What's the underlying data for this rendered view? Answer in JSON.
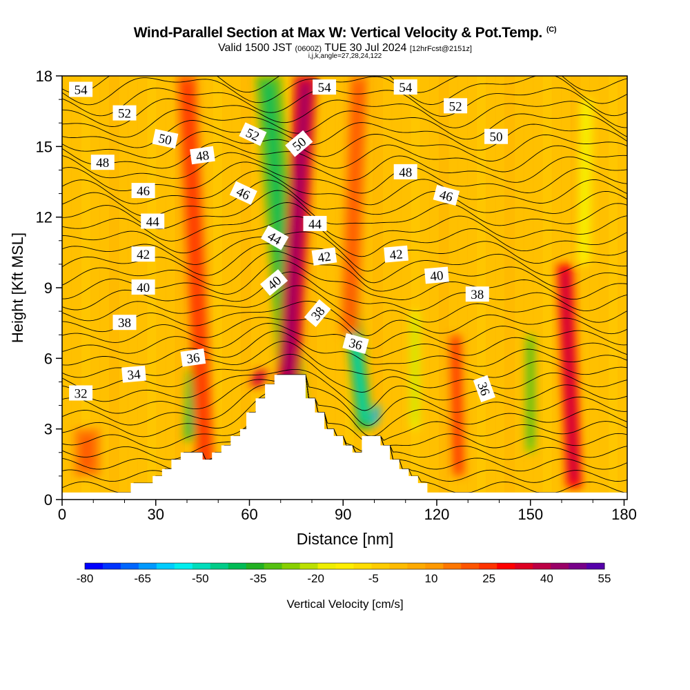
{
  "title": {
    "main": "Wind-Parallel Section at Max W: Vertical Velocity & Pot.Temp.",
    "copyright": "(C)",
    "valid_prefix": "Valid 1500 JST",
    "valid_z": "(0600Z)",
    "valid_date": "TUE 30 Jul 2024",
    "forecast": "[12hrFcst@2151z]",
    "indices": "i,j,k,angle=27,28,24,122"
  },
  "chart_data": {
    "type": "heatmap",
    "xlabel": "Distance [nm]",
    "ylabel": "Height [Kft MSL]",
    "xlim": [
      0,
      181
    ],
    "ylim": [
      0,
      18
    ],
    "xticks": [
      0,
      30,
      60,
      90,
      120,
      150,
      180
    ],
    "yticks": [
      0,
      3,
      6,
      9,
      12,
      15,
      18
    ],
    "colorbar": {
      "label": "Vertical Velocity [cm/s]",
      "tick_labels": [
        "-80",
        "-65",
        "-50",
        "-35",
        "-20",
        "-5",
        "10",
        "25",
        "40",
        "55"
      ],
      "min": -80,
      "max": 55,
      "colors": [
        "#0000ff",
        "#0033ff",
        "#0066ff",
        "#0099ff",
        "#00ccff",
        "#00eeee",
        "#00ddbb",
        "#00cc88",
        "#00bb55",
        "#22b022",
        "#55c011",
        "#88d000",
        "#bbe000",
        "#eeee00",
        "#ffee00",
        "#ffdd00",
        "#ffcc00",
        "#ffbb00",
        "#ffaa00",
        "#ff9900",
        "#ff7700",
        "#ff5500",
        "#ff3300",
        "#ff0000",
        "#dd0022",
        "#bb0044",
        "#990066",
        "#770088",
        "#5500aa"
      ]
    },
    "terrain": [
      [
        0,
        0.3
      ],
      [
        22,
        0.3
      ],
      [
        22,
        0.7
      ],
      [
        29,
        0.7
      ],
      [
        29,
        1.0
      ],
      [
        32,
        1.0
      ],
      [
        32,
        1.3
      ],
      [
        35,
        1.3
      ],
      [
        35,
        1.7
      ],
      [
        38,
        1.7
      ],
      [
        38,
        2.0
      ],
      [
        45,
        2.0
      ],
      [
        45,
        1.7
      ],
      [
        48,
        1.7
      ],
      [
        48,
        2.0
      ],
      [
        51,
        2.0
      ],
      [
        51,
        2.3
      ],
      [
        54,
        2.3
      ],
      [
        54,
        2.7
      ],
      [
        57,
        2.7
      ],
      [
        57,
        3.0
      ],
      [
        59,
        3.0
      ],
      [
        59,
        3.7
      ],
      [
        62,
        3.7
      ],
      [
        62,
        4.3
      ],
      [
        65,
        4.3
      ],
      [
        65,
        4.9
      ],
      [
        68,
        4.9
      ],
      [
        68,
        5.3
      ],
      [
        78,
        5.3
      ],
      [
        78,
        4.3
      ],
      [
        81,
        4.3
      ],
      [
        81,
        3.7
      ],
      [
        84,
        3.7
      ],
      [
        84,
        3.0
      ],
      [
        87,
        3.0
      ],
      [
        87,
        2.7
      ],
      [
        90,
        2.7
      ],
      [
        90,
        2.3
      ],
      [
        93,
        2.3
      ],
      [
        93,
        2.0
      ],
      [
        96,
        2.0
      ],
      [
        96,
        2.7
      ],
      [
        102,
        2.7
      ],
      [
        102,
        2.3
      ],
      [
        105,
        2.3
      ],
      [
        105,
        1.7
      ],
      [
        108,
        1.7
      ],
      [
        108,
        1.3
      ],
      [
        111,
        1.3
      ],
      [
        111,
        1.0
      ],
      [
        114,
        1.0
      ],
      [
        114,
        0.7
      ],
      [
        117,
        0.7
      ],
      [
        117,
        0.3
      ],
      [
        181,
        0.3
      ]
    ],
    "w_features": [
      {
        "x0": 76,
        "y0": 0.5,
        "x1": 66,
        "y1": 18,
        "w": -30,
        "width": 4
      },
      {
        "x0": 72,
        "y0": 4.0,
        "x1": 78,
        "y1": 18,
        "w": 32,
        "width": 3.5
      },
      {
        "x0": 41,
        "y0": 2.5,
        "x1": 42,
        "y1": 5.5,
        "w": -30,
        "width": 2
      },
      {
        "x0": 97,
        "y0": 3.0,
        "x1": 92,
        "y1": 9.0,
        "w": -38,
        "width": 2.5
      },
      {
        "x0": 100,
        "y0": 3.2,
        "x1": 101,
        "y1": 4.0,
        "w": -60,
        "width": 1
      },
      {
        "x0": 164,
        "y0": 0.5,
        "x1": 161,
        "y1": 10.0,
        "w": 30,
        "width": 2.5
      },
      {
        "x0": 150,
        "y0": 2.0,
        "x1": 150,
        "y1": 7.0,
        "w": -25,
        "width": 1.5
      },
      {
        "x0": 113,
        "y0": 3.0,
        "x1": 113,
        "y1": 8.0,
        "w": -15,
        "width": 1.5
      },
      {
        "x0": 127,
        "y0": 1.0,
        "x1": 126,
        "y1": 7.0,
        "w": 18,
        "width": 2
      },
      {
        "x0": 46,
        "y0": 1.0,
        "x1": 40,
        "y1": 18,
        "w": 18,
        "width": 3
      },
      {
        "x0": 92,
        "y0": 7.0,
        "x1": 95,
        "y1": 18,
        "w": 15,
        "width": 3
      },
      {
        "x0": 167,
        "y0": 10.0,
        "x1": 168,
        "y1": 17,
        "w": -12,
        "width": 2
      },
      {
        "x0": 8,
        "y0": 1.0,
        "x1": 8,
        "y1": 3.0,
        "w": 15,
        "width": 4
      },
      {
        "x0": 62,
        "y0": 4.8,
        "x1": 64,
        "y1": 5.5,
        "w": 35,
        "width": 2
      }
    ],
    "theta_labels": [
      {
        "text": "54",
        "x": 6,
        "y": 17.4,
        "angle": 0
      },
      {
        "text": "52",
        "x": 20,
        "y": 16.4,
        "angle": 0
      },
      {
        "text": "50",
        "x": 33,
        "y": 15.3,
        "angle": 12
      },
      {
        "text": "48",
        "x": 13,
        "y": 14.3,
        "angle": 0
      },
      {
        "text": "48",
        "x": 45,
        "y": 14.6,
        "angle": -8
      },
      {
        "text": "46",
        "x": 26,
        "y": 13.1,
        "angle": 0
      },
      {
        "text": "44",
        "x": 29,
        "y": 11.8,
        "angle": 0
      },
      {
        "text": "42",
        "x": 26,
        "y": 10.4,
        "angle": 0
      },
      {
        "text": "40",
        "x": 26,
        "y": 9.0,
        "angle": 0
      },
      {
        "text": "38",
        "x": 20,
        "y": 7.5,
        "angle": 0
      },
      {
        "text": "36",
        "x": 42,
        "y": 6.0,
        "angle": -8
      },
      {
        "text": "34",
        "x": 23,
        "y": 5.3,
        "angle": -5
      },
      {
        "text": "32",
        "x": 6,
        "y": 4.5,
        "angle": 0
      },
      {
        "text": "52",
        "x": 61,
        "y": 15.5,
        "angle": 25
      },
      {
        "text": "46",
        "x": 58,
        "y": 13.0,
        "angle": 25
      },
      {
        "text": "44",
        "x": 68,
        "y": 11.1,
        "angle": 30
      },
      {
        "text": "40",
        "x": 68,
        "y": 9.2,
        "angle": -40
      },
      {
        "text": "50",
        "x": 76,
        "y": 15.1,
        "angle": -40
      },
      {
        "text": "54",
        "x": 84,
        "y": 17.5,
        "angle": 0
      },
      {
        "text": "44",
        "x": 81,
        "y": 11.7,
        "angle": 0
      },
      {
        "text": "42",
        "x": 84,
        "y": 10.3,
        "angle": -8
      },
      {
        "text": "38",
        "x": 82,
        "y": 7.9,
        "angle": -50
      },
      {
        "text": "36",
        "x": 94,
        "y": 6.6,
        "angle": 15
      },
      {
        "text": "54",
        "x": 110,
        "y": 17.5,
        "angle": 0
      },
      {
        "text": "52",
        "x": 126,
        "y": 16.7,
        "angle": 0
      },
      {
        "text": "50",
        "x": 139,
        "y": 15.4,
        "angle": 0
      },
      {
        "text": "48",
        "x": 110,
        "y": 13.9,
        "angle": 0
      },
      {
        "text": "46",
        "x": 123,
        "y": 12.9,
        "angle": 15
      },
      {
        "text": "42",
        "x": 107,
        "y": 10.4,
        "angle": -5
      },
      {
        "text": "40",
        "x": 120,
        "y": 9.5,
        "angle": -5
      },
      {
        "text": "38",
        "x": 133,
        "y": 8.7,
        "angle": 0
      },
      {
        "text": "36",
        "x": 135,
        "y": 4.7,
        "angle": 70
      }
    ]
  }
}
